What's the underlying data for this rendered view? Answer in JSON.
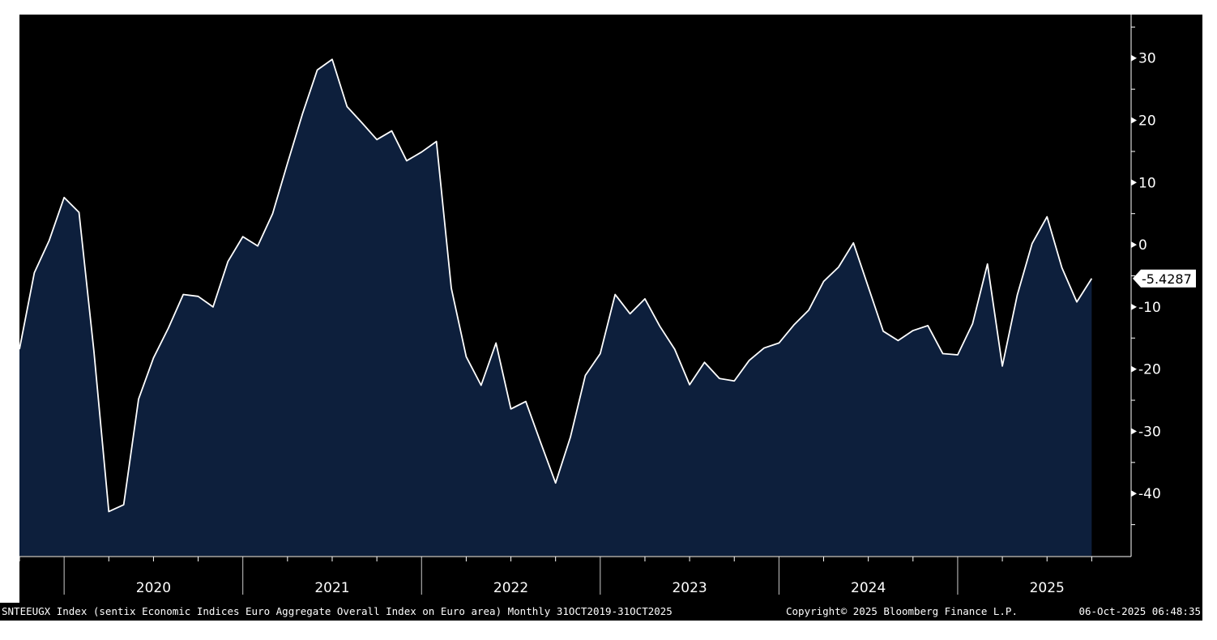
{
  "chart_data": {
    "type": "area",
    "frequency": "Monthly",
    "colors": {
      "background": "#000000",
      "fill": "#0d1f3c",
      "line": "#ffffff",
      "text": "#ffffff",
      "last_value_bg": "#ffffff"
    },
    "grid": false,
    "ylim": [
      -50,
      37
    ],
    "xlim": [
      "2019-10",
      "2025-11"
    ],
    "yticks": [
      30,
      20,
      10,
      0,
      -10,
      -20,
      -30,
      -40
    ],
    "ytick_labels": [
      "30",
      "20",
      "10",
      "0",
      "-10",
      "-20",
      "-30",
      "-40"
    ],
    "year_labels": [
      "2020",
      "2021",
      "2022",
      "2023",
      "2024",
      "2025"
    ],
    "last_value_label": "-5.4287",
    "series": [
      {
        "x": [
          "2019-10",
          "2019-11",
          "2019-12",
          "2020-01",
          "2020-02",
          "2020-03",
          "2020-04",
          "2020-05",
          "2020-06",
          "2020-07",
          "2020-08",
          "2020-09",
          "2020-10",
          "2020-11",
          "2020-12",
          "2021-01",
          "2021-02",
          "2021-03",
          "2021-04",
          "2021-05",
          "2021-06",
          "2021-07",
          "2021-08",
          "2021-09",
          "2021-10",
          "2021-11",
          "2021-12",
          "2022-01",
          "2022-02",
          "2022-03",
          "2022-04",
          "2022-05",
          "2022-06",
          "2022-07",
          "2022-08",
          "2022-09",
          "2022-10",
          "2022-11",
          "2022-12",
          "2023-01",
          "2023-02",
          "2023-03",
          "2023-04",
          "2023-05",
          "2023-06",
          "2023-07",
          "2023-08",
          "2023-09",
          "2023-10",
          "2023-11",
          "2023-12",
          "2024-01",
          "2024-02",
          "2024-03",
          "2024-04",
          "2024-05",
          "2024-06",
          "2024-07",
          "2024-08",
          "2024-09",
          "2024-10",
          "2024-11",
          "2024-12",
          "2025-01",
          "2025-02",
          "2025-03",
          "2025-04",
          "2025-05",
          "2025-06",
          "2025-07",
          "2025-08",
          "2025-09",
          "2025-10"
        ],
        "values": [
          -16.8,
          -4.5,
          0.7,
          7.6,
          5.2,
          -17.1,
          -42.9,
          -41.8,
          -24.8,
          -18.2,
          -13.4,
          -8.0,
          -8.3,
          -10.0,
          -2.7,
          1.3,
          -0.2,
          5.0,
          13.1,
          21.0,
          28.1,
          29.8,
          22.2,
          19.6,
          16.9,
          18.3,
          13.5,
          14.9,
          16.6,
          -7.0,
          -18.0,
          -22.6,
          -15.8,
          -26.4,
          -25.2,
          -31.8,
          -38.3,
          -30.9,
          -21.0,
          -17.5,
          -8.0,
          -11.1,
          -8.7,
          -13.1,
          -16.8,
          -22.5,
          -18.9,
          -21.5,
          -21.9,
          -18.6,
          -16.6,
          -15.8,
          -12.9,
          -10.5,
          -5.9,
          -3.6,
          0.3,
          -6.8,
          -13.9,
          -15.4,
          -13.8,
          -13.0,
          -17.5,
          -17.7,
          -12.7,
          -3.1,
          -19.5,
          -8.1,
          0.2,
          4.5,
          -3.7,
          -9.2,
          -5.4287
        ]
      }
    ],
    "footer": {
      "description": "SNTEEUGX Index (sentix Economic Indices Euro Aggregate  Overall Index on Euro area) Monthly 31OCT2019-31OCT2025",
      "copyright": "Copyright© 2025 Bloomberg Finance L.P.",
      "timestamp": "06-Oct-2025 06:48:35"
    }
  }
}
